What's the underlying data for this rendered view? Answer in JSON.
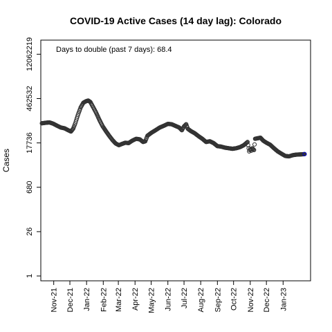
{
  "chart_data": {
    "type": "scatter",
    "title": "COVID-19 Active Cases (14 day lag): Colorado",
    "xlabel": "",
    "ylabel": "Cases",
    "annotation": "Days to double (past 7 days): 68.4",
    "y_scale": "log",
    "y_ticks": [
      1,
      26,
      680,
      17736,
      462532,
      12062219
    ],
    "y_tick_labels": [
      "1",
      "26",
      "680",
      "17736",
      "462532",
      "12062219"
    ],
    "x_ticks": [
      "2021-11-01",
      "2021-12-01",
      "2022-01-01",
      "2022-02-01",
      "2022-03-01",
      "2022-04-01",
      "2022-05-01",
      "2022-06-01",
      "2022-07-01",
      "2022-08-01",
      "2022-09-01",
      "2022-10-01",
      "2022-11-01",
      "2022-12-01",
      "2023-01-01"
    ],
    "x_tick_labels": [
      "Nov-21",
      "Dec-21",
      "Jan-22",
      "Feb-22",
      "Mar-22",
      "Apr-22",
      "May-22",
      "Jun-22",
      "Jul-22",
      "Aug-22",
      "Sep-22",
      "Oct-22",
      "Nov-22",
      "Dec-22",
      "Jan-23"
    ],
    "xlim": [
      "2021-10-08",
      "2023-02-21"
    ],
    "ylim": [
      0.7,
      34000000
    ],
    "grid": false,
    "point_color": "#333333",
    "last_point_color": "#0000cc",
    "series": [
      {
        "points": [
          [
            "2021-10-10",
            75000
          ],
          [
            "2021-10-17",
            78000
          ],
          [
            "2021-10-24",
            80000
          ],
          [
            "2021-10-31",
            73000
          ],
          [
            "2021-11-07",
            63000
          ],
          [
            "2021-11-14",
            55000
          ],
          [
            "2021-11-21",
            52000
          ],
          [
            "2021-11-28",
            45000
          ],
          [
            "2021-12-03",
            41000
          ],
          [
            "2021-12-07",
            50000
          ],
          [
            "2021-12-11",
            75000
          ],
          [
            "2021-12-16",
            140000
          ],
          [
            "2021-12-21",
            240000
          ],
          [
            "2021-12-26",
            340000
          ],
          [
            "2021-12-31",
            380000
          ],
          [
            "2022-01-04",
            400000
          ],
          [
            "2022-01-08",
            360000
          ],
          [
            "2022-01-13",
            250000
          ],
          [
            "2022-01-19",
            160000
          ],
          [
            "2022-01-25",
            95000
          ],
          [
            "2022-01-31",
            60000
          ],
          [
            "2022-02-06",
            42000
          ],
          [
            "2022-02-12",
            30000
          ],
          [
            "2022-02-18",
            22000
          ],
          [
            "2022-02-24",
            17000
          ],
          [
            "2022-03-02",
            15000
          ],
          [
            "2022-03-08",
            16500
          ],
          [
            "2022-03-14",
            18000
          ],
          [
            "2022-03-20",
            17500
          ],
          [
            "2022-03-27",
            21000
          ],
          [
            "2022-04-03",
            24000
          ],
          [
            "2022-04-10",
            23000
          ],
          [
            "2022-04-16",
            19000
          ],
          [
            "2022-04-20",
            20000
          ],
          [
            "2022-04-24",
            30000
          ],
          [
            "2022-05-01",
            37000
          ],
          [
            "2022-05-09",
            45000
          ],
          [
            "2022-05-17",
            55000
          ],
          [
            "2022-05-25",
            63000
          ],
          [
            "2022-06-01",
            72000
          ],
          [
            "2022-06-08",
            70000
          ],
          [
            "2022-06-15",
            62000
          ],
          [
            "2022-06-22",
            55000
          ],
          [
            "2022-06-27",
            45000
          ],
          [
            "2022-07-01",
            60000
          ],
          [
            "2022-07-05",
            70000
          ],
          [
            "2022-07-08",
            50000
          ],
          [
            "2022-07-14",
            42000
          ],
          [
            "2022-07-21",
            36000
          ],
          [
            "2022-07-28",
            29000
          ],
          [
            "2022-08-04",
            24000
          ],
          [
            "2022-08-11",
            19000
          ],
          [
            "2022-08-18",
            20000
          ],
          [
            "2022-08-25",
            17500
          ],
          [
            "2022-09-01",
            14000
          ],
          [
            "2022-09-08",
            13500
          ],
          [
            "2022-09-15",
            12500
          ],
          [
            "2022-09-22",
            12000
          ],
          [
            "2022-09-29",
            11500
          ],
          [
            "2022-10-06",
            12000
          ],
          [
            "2022-10-13",
            13000
          ],
          [
            "2022-10-20",
            15000
          ],
          [
            "2022-10-27",
            19000
          ],
          [
            "2022-10-30",
            9500
          ],
          [
            "2022-11-01",
            11500
          ],
          [
            "2022-11-03",
            10000
          ],
          [
            "2022-11-05",
            12000
          ],
          [
            "2022-11-08",
            10500
          ],
          [
            "2022-11-10",
            24000
          ],
          [
            "2022-11-15",
            25000
          ],
          [
            "2022-11-20",
            26000
          ],
          [
            "2022-11-25",
            21000
          ],
          [
            "2022-12-01",
            18000
          ],
          [
            "2022-12-08",
            15500
          ],
          [
            "2022-12-15",
            12000
          ],
          [
            "2022-12-22",
            9500
          ],
          [
            "2022-12-29",
            8000
          ],
          [
            "2023-01-05",
            6800
          ],
          [
            "2023-01-12",
            6600
          ],
          [
            "2023-01-19",
            7200
          ],
          [
            "2023-01-26",
            7500
          ],
          [
            "2023-02-02",
            7600
          ],
          [
            "2023-02-07",
            7700
          ],
          [
            "2023-02-10",
            7800
          ]
        ]
      }
    ]
  }
}
